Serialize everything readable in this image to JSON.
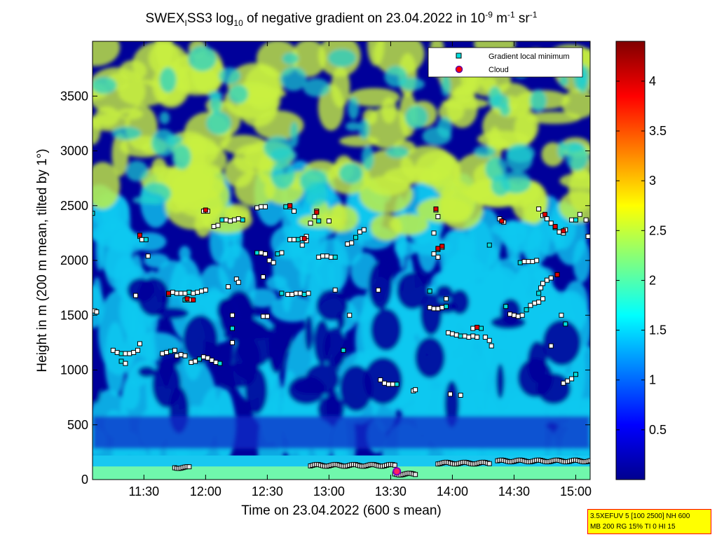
{
  "chart_data": {
    "type": "heatmap",
    "title": {
      "prefix": "SWEX",
      "prefix_sub": "I",
      "mid": "SS3 log",
      "mid_sub": "10",
      "text": " of negative gradient on 23.04.2022 in 10",
      "unit_sup1": "-9",
      "unit_text1": " m",
      "unit_sup2": "-1",
      "unit_text2": " sr",
      "unit_sup3": "-1"
    },
    "xlabel": "Time on 23.04.2022 (600 s mean)",
    "ylabel": "Height in m (200 m mean, tilted by 1°)",
    "x_range_minutes": [
      665,
      907
    ],
    "x_ticks": [
      {
        "minute": 690,
        "label": "11:30"
      },
      {
        "minute": 720,
        "label": "12:00"
      },
      {
        "minute": 750,
        "label": "12:30"
      },
      {
        "minute": 780,
        "label": "13:00"
      },
      {
        "minute": 810,
        "label": "13:30"
      },
      {
        "minute": 840,
        "label": "14:00"
      },
      {
        "minute": 870,
        "label": "14:30"
      },
      {
        "minute": 900,
        "label": "15:00"
      }
    ],
    "ylim": [
      0,
      4000
    ],
    "y_ticks": [
      0,
      500,
      1000,
      1500,
      2000,
      2500,
      3000,
      3500
    ],
    "colorbar": {
      "range": [
        0,
        4.4
      ],
      "ticks": [
        0.5,
        1,
        1.5,
        2,
        2.5,
        3,
        3.5,
        4
      ]
    },
    "legend": {
      "placement": "top-right",
      "entries": [
        {
          "label": "Gradient local minimum",
          "color": "#00dddd",
          "marker": "square"
        },
        {
          "label": "Cloud",
          "color": "#ff0000",
          "marker": "circle"
        }
      ]
    },
    "layers": [
      {
        "name": "low",
        "z": 0.5,
        "color": "#00009a"
      },
      {
        "name": "mid",
        "z": 1.5,
        "color": "#10c8f0"
      },
      {
        "name": "high",
        "z": 2.6,
        "color": "#c8f040"
      },
      {
        "name": "surface",
        "z": 2.2,
        "color": "#80ffa0"
      }
    ],
    "markers": [
      {
        "t": 665,
        "h": 2430
      },
      {
        "t": 666,
        "h": 1540
      },
      {
        "t": 667,
        "h": 1530
      },
      {
        "t": 675,
        "h": 1180
      },
      {
        "t": 677,
        "h": 1160
      },
      {
        "t": 679,
        "h": 1150
      },
      {
        "t": 681,
        "h": 1150
      },
      {
        "t": 683,
        "h": 1150
      },
      {
        "t": 685,
        "h": 1160
      },
      {
        "t": 687,
        "h": 1180
      },
      {
        "t": 679,
        "h": 1080
      },
      {
        "t": 681,
        "h": 1060
      },
      {
        "t": 688,
        "h": 1240
      },
      {
        "t": 688,
        "h": 2220
      },
      {
        "t": 689,
        "h": 2190
      },
      {
        "t": 691,
        "h": 2190
      },
      {
        "t": 692,
        "h": 2040
      },
      {
        "t": 686,
        "h": 1680
      },
      {
        "t": 699,
        "h": 1150
      },
      {
        "t": 701,
        "h": 1160
      },
      {
        "t": 703,
        "h": 1170
      },
      {
        "t": 705,
        "h": 1180
      },
      {
        "t": 706,
        "h": 1130
      },
      {
        "t": 708,
        "h": 1140
      },
      {
        "t": 710,
        "h": 1130
      },
      {
        "t": 702,
        "h": 1690
      },
      {
        "t": 704,
        "h": 1710
      },
      {
        "t": 706,
        "h": 1700
      },
      {
        "t": 708,
        "h": 1700
      },
      {
        "t": 710,
        "h": 1700
      },
      {
        "t": 712,
        "h": 1710
      },
      {
        "t": 714,
        "h": 1700
      },
      {
        "t": 716,
        "h": 1710
      },
      {
        "t": 718,
        "h": 1720
      },
      {
        "t": 720,
        "h": 1730
      },
      {
        "t": 710,
        "h": 1640
      },
      {
        "t": 712,
        "h": 1640
      },
      {
        "t": 713,
        "h": 1640
      },
      {
        "t": 713,
        "h": 1070
      },
      {
        "t": 715,
        "h": 1080
      },
      {
        "t": 717,
        "h": 1100
      },
      {
        "t": 719,
        "h": 1120
      },
      {
        "t": 721,
        "h": 1110
      },
      {
        "t": 723,
        "h": 1090
      },
      {
        "t": 725,
        "h": 1070
      },
      {
        "t": 727,
        "h": 1060
      },
      {
        "t": 719,
        "h": 2450
      },
      {
        "t": 721,
        "h": 2450
      },
      {
        "t": 724,
        "h": 2310
      },
      {
        "t": 726,
        "h": 2320
      },
      {
        "t": 728,
        "h": 2370
      },
      {
        "t": 730,
        "h": 2370
      },
      {
        "t": 732,
        "h": 2360
      },
      {
        "t": 734,
        "h": 2370
      },
      {
        "t": 736,
        "h": 2380
      },
      {
        "t": 738,
        "h": 2370
      },
      {
        "t": 735,
        "h": 1830
      },
      {
        "t": 736,
        "h": 1800
      },
      {
        "t": 731,
        "h": 1760
      },
      {
        "t": 733,
        "h": 1500
      },
      {
        "t": 733,
        "h": 1380
      },
      {
        "t": 733,
        "h": 1250
      },
      {
        "t": 745,
        "h": 2480
      },
      {
        "t": 747,
        "h": 2490
      },
      {
        "t": 749,
        "h": 2490
      },
      {
        "t": 745,
        "h": 2070
      },
      {
        "t": 747,
        "h": 2070
      },
      {
        "t": 749,
        "h": 2060
      },
      {
        "t": 751,
        "h": 2000
      },
      {
        "t": 753,
        "h": 1980
      },
      {
        "t": 755,
        "h": 2060
      },
      {
        "t": 757,
        "h": 2070
      },
      {
        "t": 748,
        "h": 1850
      },
      {
        "t": 748,
        "h": 1490
      },
      {
        "t": 750,
        "h": 1490
      },
      {
        "t": 759,
        "h": 2490
      },
      {
        "t": 761,
        "h": 2490
      },
      {
        "t": 763,
        "h": 2450
      },
      {
        "t": 761,
        "h": 2190
      },
      {
        "t": 763,
        "h": 2190
      },
      {
        "t": 765,
        "h": 2190
      },
      {
        "t": 767,
        "h": 2200
      },
      {
        "t": 769,
        "h": 2180
      },
      {
        "t": 767,
        "h": 2140
      },
      {
        "t": 769,
        "h": 2220
      },
      {
        "t": 757,
        "h": 1700
      },
      {
        "t": 760,
        "h": 1690
      },
      {
        "t": 762,
        "h": 1690
      },
      {
        "t": 764,
        "h": 1700
      },
      {
        "t": 766,
        "h": 1700
      },
      {
        "t": 768,
        "h": 1690
      },
      {
        "t": 770,
        "h": 1700
      },
      {
        "t": 771,
        "h": 2340
      },
      {
        "t": 773,
        "h": 2400
      },
      {
        "t": 774,
        "h": 2450
      },
      {
        "t": 775,
        "h": 2360
      },
      {
        "t": 775,
        "h": 2030
      },
      {
        "t": 777,
        "h": 2040
      },
      {
        "t": 779,
        "h": 2040
      },
      {
        "t": 781,
        "h": 2030
      },
      {
        "t": 783,
        "h": 2030
      },
      {
        "t": 780,
        "h": 2360
      },
      {
        "t": 783,
        "h": 1730
      },
      {
        "t": 789,
        "h": 2150
      },
      {
        "t": 791,
        "h": 2160
      },
      {
        "t": 793,
        "h": 2210
      },
      {
        "t": 795,
        "h": 2260
      },
      {
        "t": 797,
        "h": 2280
      },
      {
        "t": 804,
        "h": 1730
      },
      {
        "t": 790,
        "h": 1500
      },
      {
        "t": 787,
        "h": 1180
      },
      {
        "t": 805,
        "h": 910
      },
      {
        "t": 807,
        "h": 880
      },
      {
        "t": 809,
        "h": 870
      },
      {
        "t": 811,
        "h": 870
      },
      {
        "t": 813,
        "h": 870
      },
      {
        "t": 821,
        "h": 810
      },
      {
        "t": 822,
        "h": 820
      },
      {
        "t": 832,
        "h": 2460
      },
      {
        "t": 831,
        "h": 2250
      },
      {
        "t": 833,
        "h": 2100
      },
      {
        "t": 831,
        "h": 2060
      },
      {
        "t": 833,
        "h": 2030
      },
      {
        "t": 835,
        "h": 2120
      },
      {
        "t": 833,
        "h": 2400
      },
      {
        "t": 829,
        "h": 1720
      },
      {
        "t": 829,
        "h": 1570
      },
      {
        "t": 831,
        "h": 1560
      },
      {
        "t": 833,
        "h": 1560
      },
      {
        "t": 835,
        "h": 1570
      },
      {
        "t": 837,
        "h": 1580
      },
      {
        "t": 837,
        "h": 1650
      },
      {
        "t": 838,
        "h": 1340
      },
      {
        "t": 840,
        "h": 1330
      },
      {
        "t": 842,
        "h": 1320
      },
      {
        "t": 844,
        "h": 1310
      },
      {
        "t": 846,
        "h": 1310
      },
      {
        "t": 848,
        "h": 1300
      },
      {
        "t": 850,
        "h": 1310
      },
      {
        "t": 852,
        "h": 1300
      },
      {
        "t": 854,
        "h": 1380
      },
      {
        "t": 850,
        "h": 1380
      },
      {
        "t": 858,
        "h": 1270
      },
      {
        "t": 859,
        "h": 1220
      },
      {
        "t": 856,
        "h": 1300
      },
      {
        "t": 858,
        "h": 2140
      },
      {
        "t": 863,
        "h": 2380
      },
      {
        "t": 865,
        "h": 2350
      },
      {
        "t": 839,
        "h": 780
      },
      {
        "t": 844,
        "h": 770
      },
      {
        "t": 866,
        "h": 1580
      },
      {
        "t": 868,
        "h": 1510
      },
      {
        "t": 870,
        "h": 1500
      },
      {
        "t": 872,
        "h": 1490
      },
      {
        "t": 874,
        "h": 1500
      },
      {
        "t": 876,
        "h": 1550
      },
      {
        "t": 878,
        "h": 1590
      },
      {
        "t": 880,
        "h": 1610
      },
      {
        "t": 882,
        "h": 1620
      },
      {
        "t": 884,
        "h": 1650
      },
      {
        "t": 873,
        "h": 1980
      },
      {
        "t": 875,
        "h": 1990
      },
      {
        "t": 877,
        "h": 1990
      },
      {
        "t": 879,
        "h": 1990
      },
      {
        "t": 881,
        "h": 2000
      },
      {
        "t": 882,
        "h": 1700
      },
      {
        "t": 883,
        "h": 1750
      },
      {
        "t": 884,
        "h": 1790
      },
      {
        "t": 886,
        "h": 1820
      },
      {
        "t": 888,
        "h": 1840
      },
      {
        "t": 891,
        "h": 1870
      },
      {
        "t": 882,
        "h": 2470
      },
      {
        "t": 884,
        "h": 2410
      },
      {
        "t": 886,
        "h": 2380
      },
      {
        "t": 888,
        "h": 2340
      },
      {
        "t": 890,
        "h": 2300
      },
      {
        "t": 892,
        "h": 2260
      },
      {
        "t": 894,
        "h": 2250
      },
      {
        "t": 895,
        "h": 2280
      },
      {
        "t": 898,
        "h": 2370
      },
      {
        "t": 900,
        "h": 2370
      },
      {
        "t": 902,
        "h": 2420
      },
      {
        "t": 905,
        "h": 2370
      },
      {
        "t": 906,
        "h": 2220
      },
      {
        "t": 893,
        "h": 1500
      },
      {
        "t": 895,
        "h": 1420
      },
      {
        "t": 888,
        "h": 1220
      },
      {
        "t": 894,
        "h": 880
      },
      {
        "t": 896,
        "h": 900
      },
      {
        "t": 898,
        "h": 920
      },
      {
        "t": 900,
        "h": 960
      }
    ],
    "cloud_markers": [
      {
        "t": 688,
        "h": 2230
      },
      {
        "t": 702,
        "h": 1700
      },
      {
        "t": 711,
        "h": 1650
      },
      {
        "t": 714,
        "h": 1640
      },
      {
        "t": 720,
        "h": 2460
      },
      {
        "t": 761,
        "h": 2500
      },
      {
        "t": 774,
        "h": 2440
      },
      {
        "t": 768,
        "h": 2200
      },
      {
        "t": 832,
        "h": 2470
      },
      {
        "t": 833,
        "h": 2110
      },
      {
        "t": 835,
        "h": 2130
      },
      {
        "t": 852,
        "h": 1390
      },
      {
        "t": 885,
        "h": 2420
      },
      {
        "t": 890,
        "h": 2310
      },
      {
        "t": 894,
        "h": 2270
      },
      {
        "t": 891,
        "h": 1870
      },
      {
        "t": 864,
        "h": 2360
      }
    ],
    "surface_line": [
      {
        "t0": 705,
        "t1": 712,
        "h": 110
      },
      {
        "t0": 771,
        "t1": 812,
        "h": 130
      },
      {
        "t0": 812,
        "t1": 822,
        "h": 50
      },
      {
        "t0": 833,
        "t1": 858,
        "h": 150
      },
      {
        "t0": 862,
        "t1": 907,
        "h": 170
      }
    ]
  },
  "info_box": {
    "line1": "3.5XEFUV 5 [100 2500] NH 600",
    "line2": "MB 200 RG 15% TI 0 HI 15"
  }
}
